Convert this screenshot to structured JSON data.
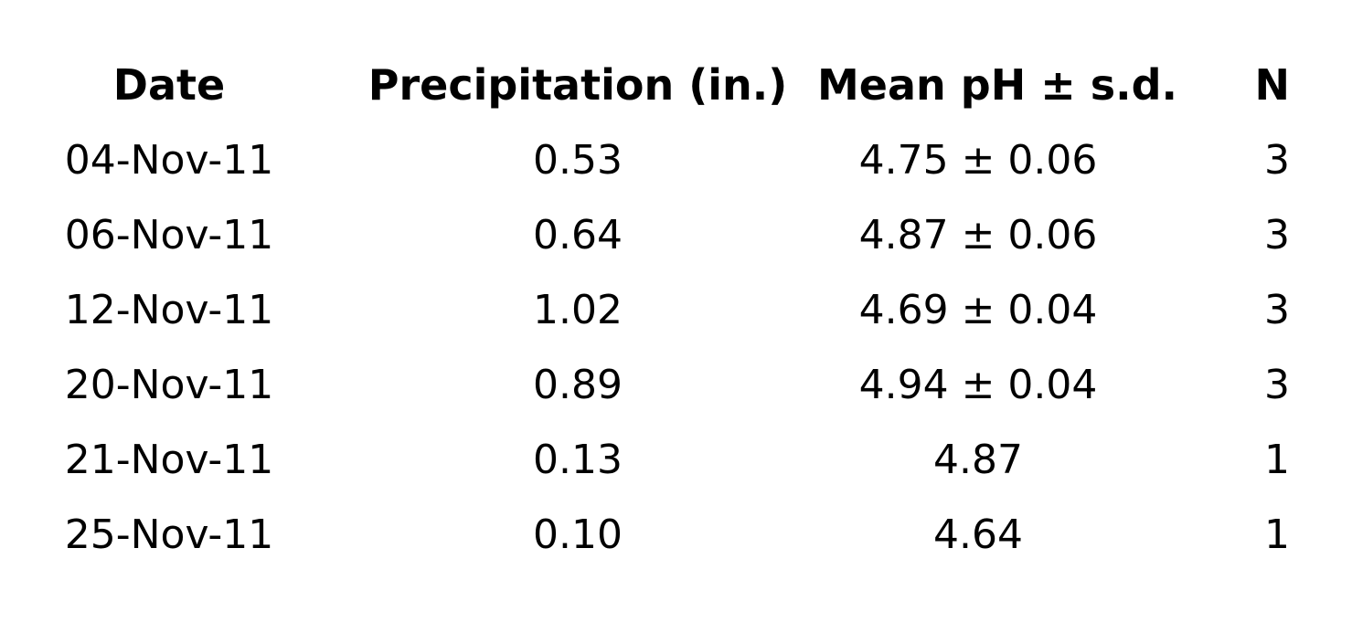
{
  "table": {
    "columns": [
      "Date",
      "Precipitation (in.)",
      "Mean pH ± s.d.",
      "N"
    ],
    "rows": [
      {
        "date": "04-Nov-11",
        "precip": "0.53",
        "ph": "4.75 ± 0.06",
        "n": "3"
      },
      {
        "date": "06-Nov-11",
        "precip": "0.64",
        "ph": "4.87 ± 0.06",
        "n": "3"
      },
      {
        "date": "12-Nov-11",
        "precip": "1.02",
        "ph": "4.69 ± 0.04",
        "n": "3"
      },
      {
        "date": "20-Nov-11",
        "precip": "0.89",
        "ph": "4.94 ± 0.04",
        "n": "3"
      },
      {
        "date": "21-Nov-11",
        "precip": "0.13",
        "ph": "4.87",
        "n": "1"
      },
      {
        "date": "25-Nov-11",
        "precip": "0.10",
        "ph": "4.64",
        "n": "1"
      }
    ],
    "text_color": "#000000",
    "background_color": "#ffffff"
  },
  "chart_data": {
    "type": "table",
    "title": "",
    "columns": [
      "Date",
      "Precipitation (in.)",
      "Mean pH ± s.d.",
      "N"
    ],
    "rows": [
      [
        "04-Nov-11",
        0.53,
        "4.75 ± 0.06",
        3
      ],
      [
        "06-Nov-11",
        0.64,
        "4.87 ± 0.06",
        3
      ],
      [
        "12-Nov-11",
        1.02,
        "4.69 ± 0.04",
        3
      ],
      [
        "20-Nov-11",
        0.89,
        "4.94 ± 0.04",
        3
      ],
      [
        "21-Nov-11",
        0.13,
        "4.87",
        1
      ],
      [
        "25-Nov-11",
        0.1,
        "4.64",
        1
      ]
    ],
    "dates": [
      "04-Nov-11",
      "06-Nov-11",
      "12-Nov-11",
      "20-Nov-11",
      "21-Nov-11",
      "25-Nov-11"
    ],
    "precipitation_in": [
      0.53,
      0.64,
      1.02,
      0.89,
      0.13,
      0.1
    ],
    "mean_ph": [
      4.75,
      4.87,
      4.69,
      4.94,
      4.87,
      4.64
    ],
    "sd": [
      0.06,
      0.06,
      0.04,
      0.04,
      null,
      null
    ],
    "n": [
      3,
      3,
      3,
      3,
      1,
      1
    ],
    "grid": false,
    "legend_position": "none"
  }
}
